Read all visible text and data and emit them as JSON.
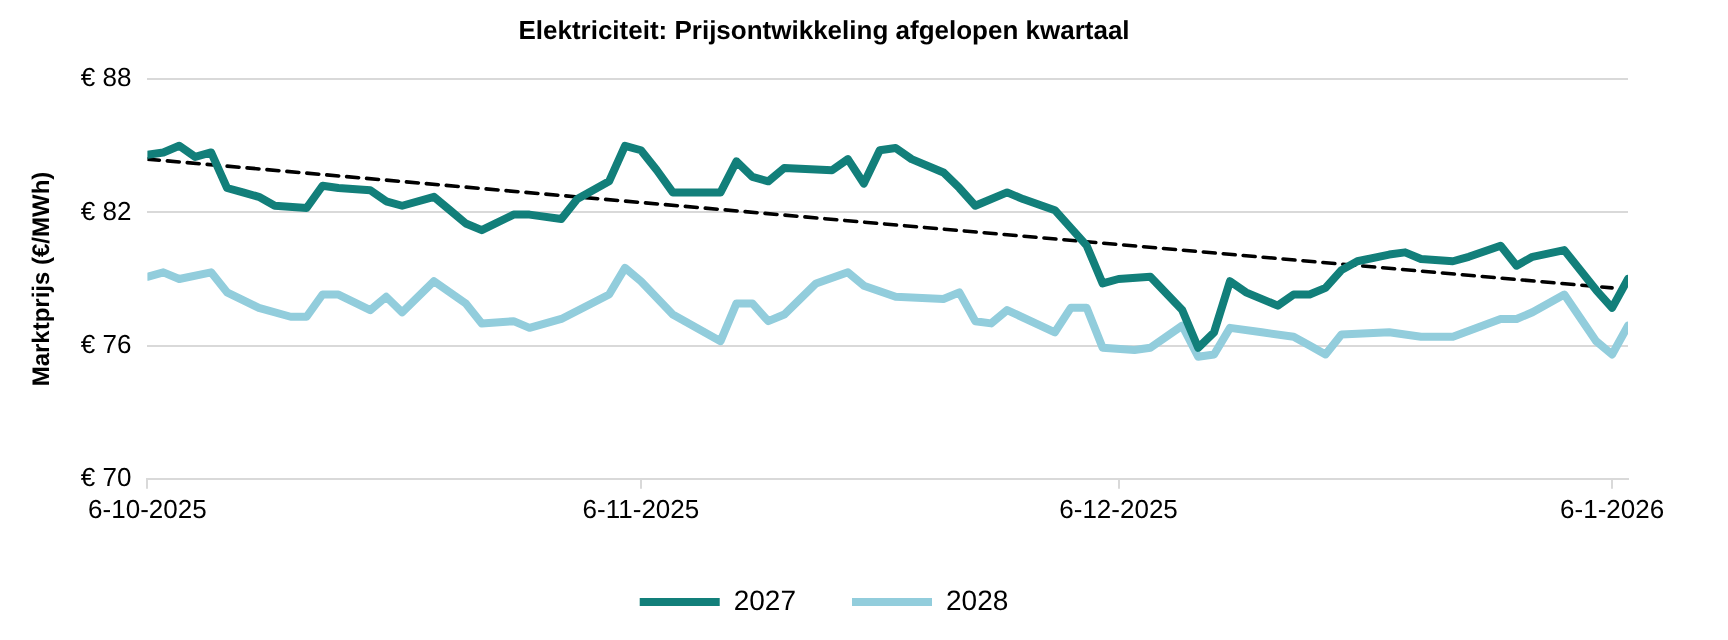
{
  "chart_data": {
    "type": "line",
    "title": "Elektriciteit: Prijsontwikkeling afgelopen kwartaal",
    "ylabel": "Marktprijs (€/MWh)",
    "xlim": [
      "2025-10-06",
      "2026-01-07"
    ],
    "xticks": [
      {
        "value": "2025-10-06",
        "label": "6-10-2025"
      },
      {
        "value": "2025-11-06",
        "label": "6-11-2025"
      },
      {
        "value": "2025-12-06",
        "label": "6-12-2025"
      },
      {
        "value": "2026-01-06",
        "label": "6-1-2026"
      }
    ],
    "ylim": [
      70,
      88
    ],
    "yticks": [
      {
        "value": 70,
        "label": "€ 70"
      },
      {
        "value": 76,
        "label": "€ 76"
      },
      {
        "value": 82,
        "label": "€ 82"
      },
      {
        "value": 88,
        "label": "€ 88"
      }
    ],
    "grid": "y",
    "legend": "bottom",
    "series": [
      {
        "name": "2027",
        "color": "#127f7a",
        "x": [
          "2025-10-06",
          "2025-10-07",
          "2025-10-08",
          "2025-10-09",
          "2025-10-10",
          "2025-10-11",
          "2025-10-12",
          "2025-10-13",
          "2025-10-14",
          "2025-10-16",
          "2025-10-17",
          "2025-10-18",
          "2025-10-20",
          "2025-10-21",
          "2025-10-22",
          "2025-10-24",
          "2025-10-25",
          "2025-10-26",
          "2025-10-27",
          "2025-10-29",
          "2025-10-30",
          "2025-11-01",
          "2025-11-02",
          "2025-11-04",
          "2025-11-05",
          "2025-11-06",
          "2025-11-07",
          "2025-11-08",
          "2025-11-11",
          "2025-11-12",
          "2025-11-13",
          "2025-11-14",
          "2025-11-15",
          "2025-11-18",
          "2025-11-19",
          "2025-11-20",
          "2025-11-21",
          "2025-11-22",
          "2025-11-23",
          "2025-11-25",
          "2025-11-26",
          "2025-11-27",
          "2025-11-29",
          "2025-11-30",
          "2025-12-02",
          "2025-12-03",
          "2025-12-04",
          "2025-12-05",
          "2025-12-06",
          "2025-12-08",
          "2025-12-10",
          "2025-12-11",
          "2025-12-12",
          "2025-12-13",
          "2025-12-14",
          "2025-12-16",
          "2025-12-17",
          "2025-12-18",
          "2025-12-19",
          "2025-12-20",
          "2025-12-21",
          "2025-12-23",
          "2025-12-24",
          "2025-12-25",
          "2025-12-27",
          "2025-12-28",
          "2025-12-30",
          "2025-12-31",
          "2026-01-01",
          "2026-01-03",
          "2026-01-05",
          "2026-01-06",
          "2026-01-07"
        ],
        "values": [
          84.6,
          84.7,
          85.0,
          84.5,
          84.7,
          83.1,
          82.9,
          82.7,
          82.3,
          82.2,
          83.2,
          83.1,
          83.0,
          82.5,
          82.3,
          82.7,
          82.1,
          81.5,
          81.2,
          81.9,
          81.9,
          81.7,
          82.6,
          83.4,
          85.0,
          84.8,
          83.9,
          82.9,
          82.9,
          84.3,
          83.6,
          83.4,
          84.0,
          83.9,
          84.4,
          83.3,
          84.8,
          84.9,
          84.4,
          83.8,
          83.1,
          82.3,
          82.9,
          82.6,
          82.1,
          81.3,
          80.5,
          78.8,
          79.0,
          79.1,
          77.6,
          75.9,
          76.6,
          78.9,
          78.4,
          77.8,
          78.3,
          78.3,
          78.6,
          79.4,
          79.8,
          80.1,
          80.2,
          79.9,
          79.8,
          80.0,
          80.5,
          79.6,
          80.0,
          80.3,
          78.5,
          77.7,
          79.0
        ]
      },
      {
        "name": "2028",
        "color": "#92cddc",
        "x": [
          "2025-10-06",
          "2025-10-07",
          "2025-10-08",
          "2025-10-10",
          "2025-10-11",
          "2025-10-13",
          "2025-10-15",
          "2025-10-16",
          "2025-10-17",
          "2025-10-18",
          "2025-10-20",
          "2025-10-21",
          "2025-10-22",
          "2025-10-24",
          "2025-10-26",
          "2025-10-27",
          "2025-10-29",
          "2025-10-30",
          "2025-11-01",
          "2025-11-04",
          "2025-11-05",
          "2025-11-06",
          "2025-11-08",
          "2025-11-11",
          "2025-11-12",
          "2025-11-13",
          "2025-11-14",
          "2025-11-15",
          "2025-11-17",
          "2025-11-19",
          "2025-11-20",
          "2025-11-22",
          "2025-11-25",
          "2025-11-26",
          "2025-11-27",
          "2025-11-28",
          "2025-11-29",
          "2025-12-02",
          "2025-12-03",
          "2025-12-04",
          "2025-12-05",
          "2025-12-07",
          "2025-12-08",
          "2025-12-10",
          "2025-12-11",
          "2025-12-12",
          "2025-12-13",
          "2025-12-15",
          "2025-12-17",
          "2025-12-18",
          "2025-12-19",
          "2025-12-20",
          "2025-12-23",
          "2025-12-25",
          "2025-12-27",
          "2025-12-30",
          "2025-12-31",
          "2026-01-01",
          "2026-01-03",
          "2026-01-05",
          "2026-01-06",
          "2026-01-07"
        ],
        "values": [
          79.1,
          79.3,
          79.0,
          79.3,
          78.4,
          77.7,
          77.3,
          77.3,
          78.3,
          78.3,
          77.6,
          78.2,
          77.5,
          78.9,
          77.9,
          77.0,
          77.1,
          76.8,
          77.2,
          78.3,
          79.5,
          78.9,
          77.4,
          76.2,
          77.9,
          77.9,
          77.1,
          77.4,
          78.8,
          79.3,
          78.7,
          78.2,
          78.1,
          78.4,
          77.1,
          77.0,
          77.6,
          76.6,
          77.7,
          77.7,
          75.9,
          75.8,
          75.9,
          76.9,
          75.5,
          75.6,
          76.8,
          76.6,
          76.4,
          76.0,
          75.6,
          76.5,
          76.6,
          76.4,
          76.4,
          77.2,
          77.2,
          77.5,
          78.3,
          76.2,
          75.6,
          76.9
        ]
      },
      {
        "color": "#000000",
        "line_style": "dashed",
        "x": [
          "2025-10-06",
          "2026-01-06"
        ],
        "values": [
          84.4,
          78.6
        ]
      }
    ]
  }
}
